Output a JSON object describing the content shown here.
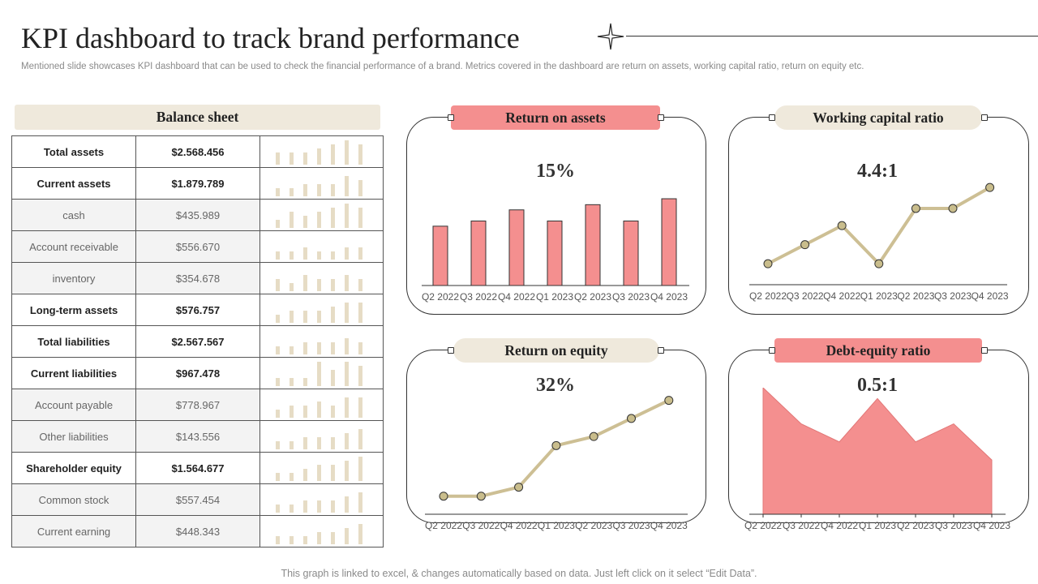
{
  "header": {
    "title": "KPI dashboard to track brand performance",
    "subtitle": "Mentioned slide showcases KPI dashboard that can be used to check the financial performance of a brand. Metrics covered in the dashboard are return on assets, working capital ratio, return on equity etc."
  },
  "balance_sheet": {
    "title": "Balance sheet",
    "rows": [
      {
        "label": "Total assets",
        "value": "$2.568.456",
        "bold": true
      },
      {
        "label": "Current assets",
        "value": "$1.879.789",
        "bold": true
      },
      {
        "label": "cash",
        "value": "$435.989",
        "bold": false
      },
      {
        "label": "Account receivable",
        "value": "$556.670",
        "bold": false
      },
      {
        "label": "inventory",
        "value": "$354.678",
        "bold": false
      },
      {
        "label": "Long-term assets",
        "value": "$576.757",
        "bold": true
      },
      {
        "label": "Total liabilities",
        "value": "$2.567.567",
        "bold": true
      },
      {
        "label": "Current liabilities",
        "value": "$967.478",
        "bold": true
      },
      {
        "label": "Account payable",
        "value": "$778.967",
        "bold": false
      },
      {
        "label": "Other liabilities",
        "value": "$143.556",
        "bold": false
      },
      {
        "label": "Shareholder equity",
        "value": "$1.564.677",
        "bold": true
      },
      {
        "label": "Common stock",
        "value": "$557.454",
        "bold": false
      },
      {
        "label": "Current  earning",
        "value": "$448.343",
        "bold": false
      }
    ]
  },
  "panels": {
    "roa": {
      "title": "Return on assets",
      "value": "15%"
    },
    "wcr": {
      "title": "Working capital ratio",
      "value": "4.4:1"
    },
    "roe": {
      "title": "Return on equity",
      "value": "32%"
    },
    "der": {
      "title": "Debt-equity ratio",
      "value": "0.5:1"
    }
  },
  "chart_data": [
    {
      "id": "roa",
      "type": "bar",
      "title": "Return on assets",
      "categories": [
        "Q2 2022",
        "Q3 2022",
        "Q4 2022",
        "Q1 2023",
        "Q2 2023",
        "Q3 2023",
        "Q4 2023"
      ],
      "values": [
        8,
        8.7,
        10.2,
        8.7,
        10.9,
        8.7,
        11.7
      ],
      "ylim": [
        0,
        14
      ],
      "color": "#f48f8f"
    },
    {
      "id": "wcr",
      "type": "line",
      "title": "Working capital ratio",
      "categories": [
        "Q2 2022",
        "Q3 2022",
        "Q4 2022",
        "Q1 2023",
        "Q2 2023",
        "Q3 2023",
        "Q4 2023"
      ],
      "values": [
        1.1,
        2.1,
        3.1,
        1.1,
        4,
        4,
        5.1
      ],
      "ylim": [
        0,
        6
      ],
      "color": "#cdbf94"
    },
    {
      "id": "roe",
      "type": "line",
      "title": "Return on equity",
      "categories": [
        "Q2 2022",
        "Q3 2022",
        "Q4 2022",
        "Q1 2023",
        "Q2 2023",
        "Q3 2023",
        "Q4 2023"
      ],
      "values": [
        1,
        1,
        1.5,
        3.8,
        4.3,
        5.3,
        6.3
      ],
      "ylim": [
        0,
        7
      ],
      "color": "#cdbf94"
    },
    {
      "id": "der",
      "type": "area",
      "title": "Debt-equity ratio",
      "categories": [
        "Q2 2022",
        "Q3 2022",
        "Q4 2022",
        "Q1 2023",
        "Q2 2023",
        "Q3 2023",
        "Q4 2023"
      ],
      "values": [
        7,
        5,
        4,
        6.4,
        4,
        5,
        3
      ],
      "ylim": [
        0,
        7
      ],
      "color": "#f48f8f"
    }
  ],
  "sparklines": [
    [
      3,
      3,
      3,
      4,
      5,
      6,
      5
    ],
    [
      2,
      2,
      3,
      3,
      3,
      5,
      4
    ],
    [
      2,
      4,
      3,
      4,
      5,
      6,
      5
    ],
    [
      2,
      2,
      3,
      2,
      2,
      3,
      3
    ],
    [
      3,
      2,
      4,
      3,
      3,
      4,
      3
    ],
    [
      2,
      3,
      3,
      3,
      4,
      5,
      5
    ],
    [
      2,
      2,
      3,
      3,
      3,
      4,
      3
    ],
    [
      2,
      2,
      2,
      6,
      4,
      6,
      5
    ],
    [
      2,
      3,
      3,
      4,
      3,
      5,
      5
    ],
    [
      2,
      2,
      3,
      3,
      3,
      4,
      5
    ],
    [
      2,
      2,
      3,
      4,
      4,
      5,
      6
    ],
    [
      2,
      2,
      3,
      3,
      3,
      4,
      5
    ],
    [
      2,
      2,
      2,
      3,
      3,
      4,
      5
    ]
  ],
  "footer": {
    "note": "This graph is linked to excel, & changes automatically based on data. Just left click on it select “Edit Data”."
  },
  "colors": {
    "accent_red": "#f48f8f",
    "beige": "#efe9dc",
    "line_gold": "#cdbf94"
  }
}
